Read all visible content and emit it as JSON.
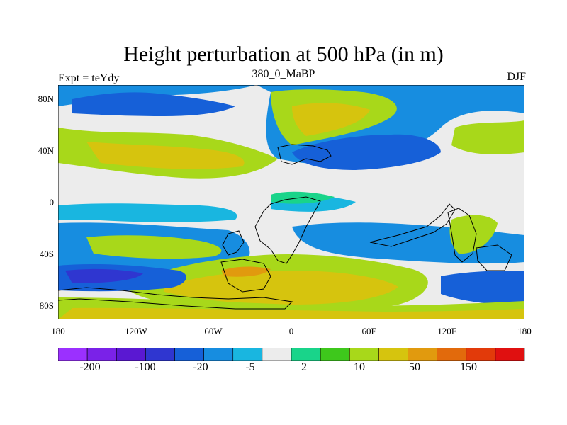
{
  "title": "Height perturbation at 500 hPa (in m)",
  "left_string": "Expt = teYdy",
  "center_string": "380_0_MaBP",
  "right_string": "DJF",
  "lat_labels": [
    "80N",
    "40N",
    "0",
    "40S",
    "80S"
  ],
  "lon_labels": [
    "180",
    "120W",
    "60W",
    "0",
    "60E",
    "120E",
    "180"
  ],
  "colorbar": {
    "colors": [
      "#9b30ff",
      "#7a22e8",
      "#5a18d2",
      "#2f36d0",
      "#1660d8",
      "#178de0",
      "#19b6e0",
      "#ececec",
      "#19d48a",
      "#3ec81c",
      "#a8d81a",
      "#d6c40e",
      "#e19a0e",
      "#e26a0c",
      "#e23a0a",
      "#e01010"
    ],
    "labels": [
      "-200",
      "-100",
      "-20",
      "-5",
      "2",
      "10",
      "50",
      "150"
    ]
  }
}
